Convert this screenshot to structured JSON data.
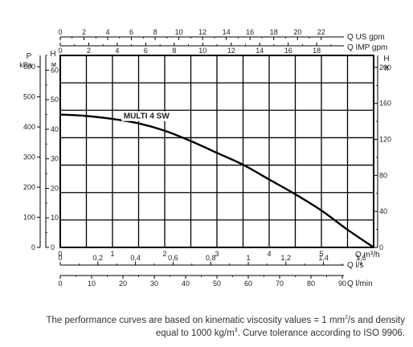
{
  "chart_data": {
    "type": "line",
    "series": [
      {
        "name": "MULTI 4 SW",
        "x": [
          0,
          0.5,
          1.0,
          1.5,
          2.0,
          2.5,
          3.0,
          3.5,
          4.0,
          4.5,
          5.0,
          5.5,
          6.0
        ],
        "y": [
          45,
          44.5,
          43.5,
          42,
          39.5,
          36,
          32,
          28,
          23,
          18,
          12.5,
          6,
          0
        ]
      }
    ],
    "x_axis_primary": {
      "label": "Q m³/h",
      "range": [
        0,
        6
      ],
      "ticks": [
        "0",
        "1",
        "2",
        "3",
        "4",
        "5"
      ]
    },
    "y_axis_left_H": {
      "unit_top": "H",
      "unit": "м",
      "range": [
        0,
        65
      ],
      "ticks": [
        "0",
        "10",
        "20",
        "30",
        "40",
        "50",
        "60"
      ]
    },
    "y_axis_left_P": {
      "unit_top": "P",
      "unit": "kPa",
      "ticks": [
        "0",
        "100",
        "200",
        "300",
        "400",
        "500",
        "600"
      ]
    },
    "y_axis_right_H": {
      "unit_top": "H",
      "unit": "ft",
      "ticks": [
        "0",
        "40",
        "80",
        "120",
        "160",
        "200"
      ]
    },
    "x_axis_top_us": {
      "label": "Q US gpm",
      "ticks": [
        "0",
        "2",
        "4",
        "6",
        "8",
        "10",
        "12",
        "14",
        "16",
        "18",
        "20",
        "22"
      ]
    },
    "x_axis_top_imp": {
      "label": "Q IMP gpm",
      "ticks": [
        "0",
        "2",
        "4",
        "6",
        "8",
        "10",
        "12",
        "14",
        "16",
        "18"
      ]
    },
    "x_axis_bottom_ls": {
      "label": "Q l/s",
      "ticks": [
        "0",
        "0,2",
        "0,4",
        "0,6",
        "0,8",
        "1",
        "1,2",
        "1,4",
        "1,6"
      ]
    },
    "x_axis_bottom_lmin": {
      "label": "Q l/min",
      "ticks": [
        "0",
        "10",
        "20",
        "30",
        "40",
        "50",
        "60",
        "70",
        "80",
        "90"
      ]
    },
    "grid": true,
    "curve_label": "MULTI 4 SW"
  },
  "caption": {
    "line1_pre": "The performance curves are based on kinematic viscosity values = 1 mm",
    "line1_sup": "2",
    "line1_post": "/s and density",
    "line2_pre": "equal to 1000 kg/m",
    "line2_sup": "3",
    "line2_post": ". Curve tolerance according to ISO 9906."
  }
}
